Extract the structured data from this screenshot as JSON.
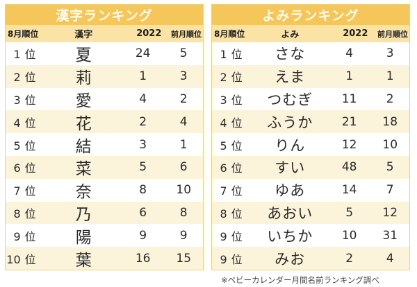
{
  "kanji_ranking": {
    "title": "漢字ランキング",
    "headers": {
      "rank": "8月順位",
      "name": "漢字",
      "year": "2022",
      "prev": "前月順位"
    },
    "rank_unit": "位",
    "rows": [
      {
        "rank": "1",
        "name": "夏",
        "year": "24",
        "prev": "5"
      },
      {
        "rank": "2",
        "name": "莉",
        "year": "1",
        "prev": "3"
      },
      {
        "rank": "3",
        "name": "愛",
        "year": "4",
        "prev": "2"
      },
      {
        "rank": "4",
        "name": "花",
        "year": "2",
        "prev": "4"
      },
      {
        "rank": "5",
        "name": "結",
        "year": "3",
        "prev": "1"
      },
      {
        "rank": "6",
        "name": "菜",
        "year": "5",
        "prev": "6"
      },
      {
        "rank": "7",
        "name": "奈",
        "year": "8",
        "prev": "10"
      },
      {
        "rank": "8",
        "name": "乃",
        "year": "6",
        "prev": "8"
      },
      {
        "rank": "9",
        "name": "陽",
        "year": "9",
        "prev": "9"
      },
      {
        "rank": "10",
        "name": "葉",
        "year": "16",
        "prev": "15"
      }
    ]
  },
  "yomi_ranking": {
    "title": "よみランキング",
    "headers": {
      "rank": "8月順位",
      "name": "よみ",
      "year": "2022",
      "prev": "前月順位"
    },
    "rank_unit": "位",
    "rows": [
      {
        "rank": "1",
        "name": "さな",
        "year": "4",
        "prev": "3"
      },
      {
        "rank": "2",
        "name": "えま",
        "year": "1",
        "prev": "1"
      },
      {
        "rank": "3",
        "name": "つむぎ",
        "year": "11",
        "prev": "2"
      },
      {
        "rank": "4",
        "name": "ふうか",
        "year": "21",
        "prev": "18"
      },
      {
        "rank": "5",
        "name": "りん",
        "year": "12",
        "prev": "10"
      },
      {
        "rank": "6",
        "name": "すい",
        "year": "48",
        "prev": "5"
      },
      {
        "rank": "7",
        "name": "ゆあ",
        "year": "14",
        "prev": "7"
      },
      {
        "rank": "8",
        "name": "あおい",
        "year": "5",
        "prev": "12"
      },
      {
        "rank": "9",
        "name": "いちか",
        "year": "10",
        "prev": "31"
      },
      {
        "rank": "9",
        "name": "みお",
        "year": "2",
        "prev": "4"
      }
    ]
  },
  "footnote": "※ベビーカレンダー月間名前ランキング調べ",
  "colors": {
    "title_bar": "#f5c75a",
    "header": "#fbe3a6",
    "row_alt": "#fbf3da",
    "border": "#f0cf7a"
  }
}
